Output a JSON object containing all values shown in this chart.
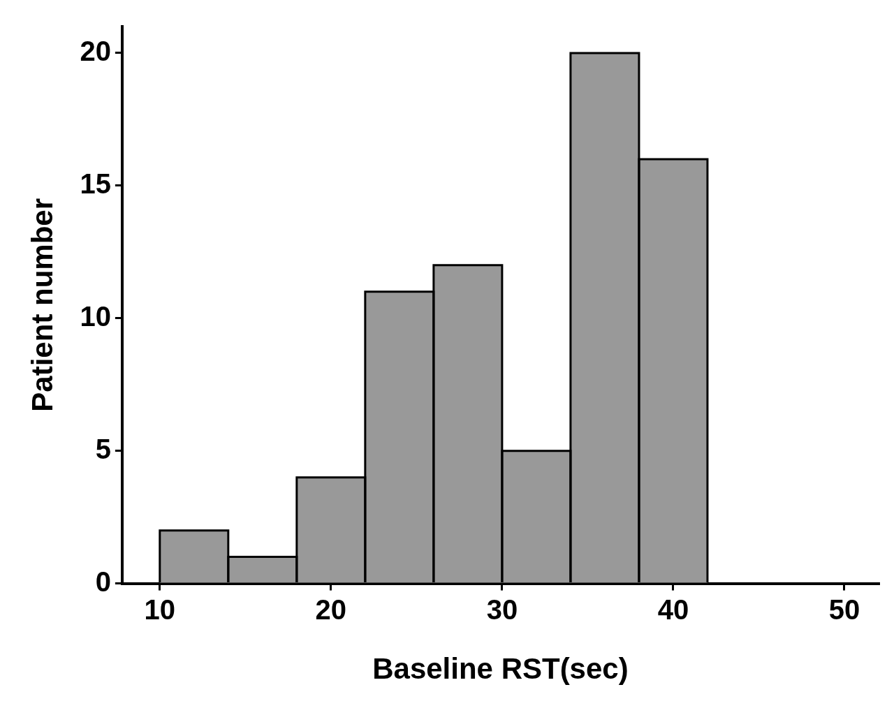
{
  "chart_data": {
    "type": "histogram",
    "xlabel": "Baseline RST(sec)",
    "ylabel": "Patient number",
    "bins": [
      10,
      14,
      18,
      22,
      26,
      30,
      34,
      38,
      42
    ],
    "values": [
      2,
      1,
      4,
      11,
      12,
      5,
      20,
      16
    ],
    "color": "#999999",
    "xlim": [
      7.8,
      52
    ],
    "xticks": [
      10,
      20,
      30,
      40,
      50
    ],
    "ylim": [
      0,
      21
    ],
    "yticks": [
      0,
      5,
      10,
      15,
      20
    ],
    "grid": false
  }
}
